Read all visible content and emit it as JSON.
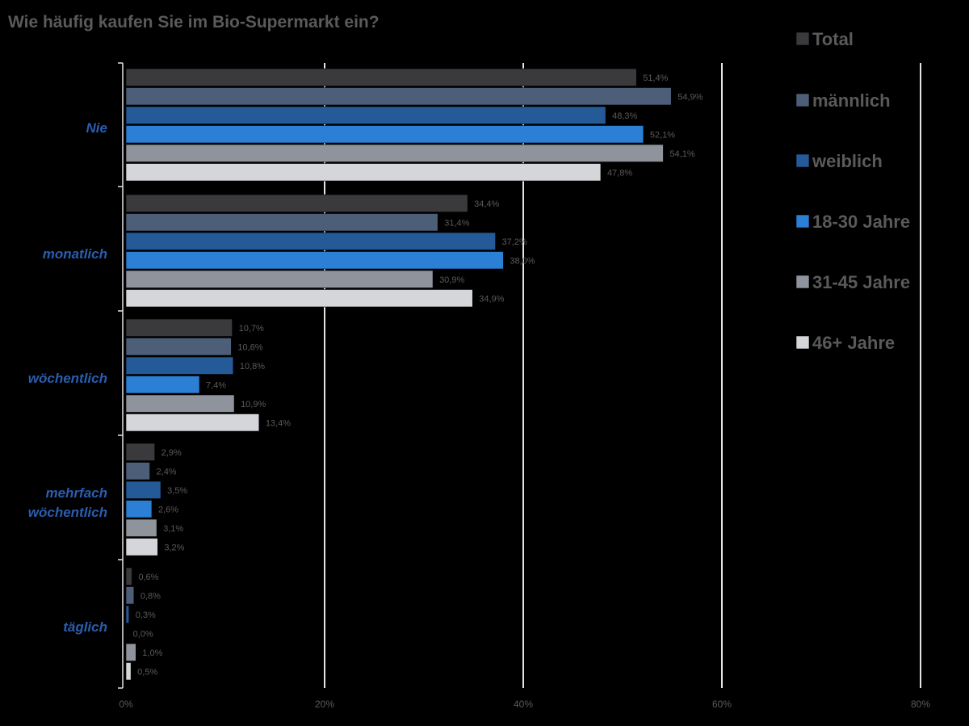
{
  "chart_data": {
    "type": "bar",
    "orientation": "horizontal",
    "title": "Wie häufig kaufen Sie im Bio-Supermarkt ein?",
    "categories": [
      "Nie",
      "monatlich",
      "wöchentlich",
      "mehrfach wöchentlich",
      "täglich"
    ],
    "category_lines": [
      [
        "Nie"
      ],
      [
        "monatlich"
      ],
      [
        "wöchentlich"
      ],
      [
        "mehrfach",
        "wöchentlich"
      ],
      [
        "täglich"
      ]
    ],
    "series": [
      {
        "name": "Total",
        "color": "#3a3a3c",
        "values": [
          51.4,
          34.4,
          10.7,
          2.9,
          0.6
        ],
        "labels": [
          "51,4%",
          "34,4%",
          "10,7%",
          "2,9%",
          "0,6%"
        ]
      },
      {
        "name": "männlich",
        "color": "#4d5e78",
        "values": [
          54.9,
          31.4,
          10.6,
          2.4,
          0.8
        ],
        "labels": [
          "54,9%",
          "31,4%",
          "10,6%",
          "2,4%",
          "0,8%"
        ]
      },
      {
        "name": "weiblich",
        "color": "#245a98",
        "values": [
          48.3,
          37.2,
          10.8,
          3.5,
          0.3
        ],
        "labels": [
          "48,3%",
          "37,2%",
          "10,8%",
          "3,5%",
          "0,3%"
        ]
      },
      {
        "name": "18-30 Jahre",
        "color": "#2b7fd4",
        "values": [
          52.1,
          38.0,
          7.4,
          2.6,
          0.0
        ],
        "labels": [
          "52,1%",
          "38,0%",
          "7,4%",
          "2,6%",
          "0,0%"
        ]
      },
      {
        "name": "31-45 Jahre",
        "color": "#8f939c",
        "values": [
          54.1,
          30.9,
          10.9,
          3.1,
          1.0
        ],
        "labels": [
          "54,1%",
          "30,9%",
          "10,9%",
          "3,1%",
          "1,0%"
        ]
      },
      {
        "name": "46+ Jahre",
        "color": "#d4d6da",
        "values": [
          47.8,
          34.9,
          13.4,
          3.2,
          0.5
        ],
        "labels": [
          "47,8%",
          "34,9%",
          "13,4%",
          "3,2%",
          "0,5%"
        ]
      }
    ],
    "xlim": [
      0,
      80
    ],
    "xticks": [
      0,
      20,
      40,
      60,
      80
    ],
    "xtick_labels": [
      "0%",
      "20%",
      "40%",
      "60%",
      "80%"
    ],
    "grid": true,
    "legend_position": "right"
  }
}
